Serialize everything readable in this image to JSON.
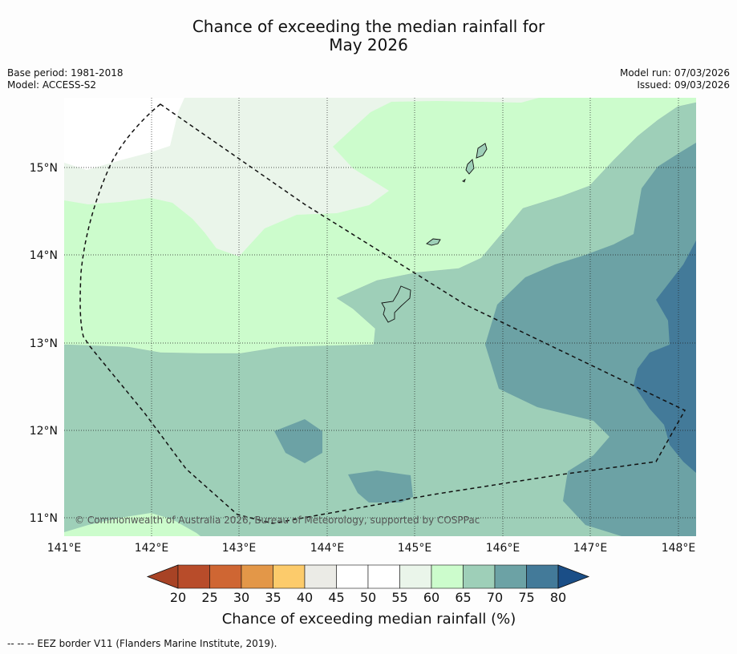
{
  "title_line1": "Chance of exceeding the median rainfall for",
  "title_line2": "May 2026",
  "base_period": "Base period: 1981-2018",
  "model": "Model: ACCESS-S2",
  "model_run": "Model run: 07/03/2026",
  "issued": "Issued: 09/03/2026",
  "copyright": "© Commonwealth of Australia 2026, Bureau of Meteorology, supported by COSPPac",
  "footnote": "--  --  -- EEZ border V11 (Flanders Marine Institute, 2019).",
  "map": {
    "lon_range": [
      141.0,
      148.2
    ],
    "lat_range": [
      10.8,
      15.8
    ],
    "lon_ticks": [
      "141°E",
      "142°E",
      "143°E",
      "144°E",
      "145°E",
      "146°E",
      "147°E",
      "148°E"
    ],
    "lat_ticks": [
      "11°N",
      "12°N",
      "13°N",
      "14°N",
      "15°N"
    ],
    "region": "Guam and Northern Mariana Islands",
    "contour_categories_present": [
      "55-60",
      "60-65",
      "65-70",
      "70-75",
      "75-80"
    ]
  },
  "colorbar": {
    "title": "Chance of exceeding median rainfall (%)",
    "labels": [
      "20",
      "25",
      "30",
      "35",
      "40",
      "45",
      "50",
      "55",
      "60",
      "65",
      "70",
      "75",
      "80"
    ],
    "colors": [
      "#a84325",
      "#b84c2a",
      "#cf6633",
      "#e39748",
      "#fccb6b",
      "#ebebe6",
      "#ffffff",
      "#ffffff",
      "#eaf5ea",
      "#ccfccc",
      "#9ecfb8",
      "#6ca2a5",
      "#437a99",
      "#1a4e87"
    ]
  }
}
